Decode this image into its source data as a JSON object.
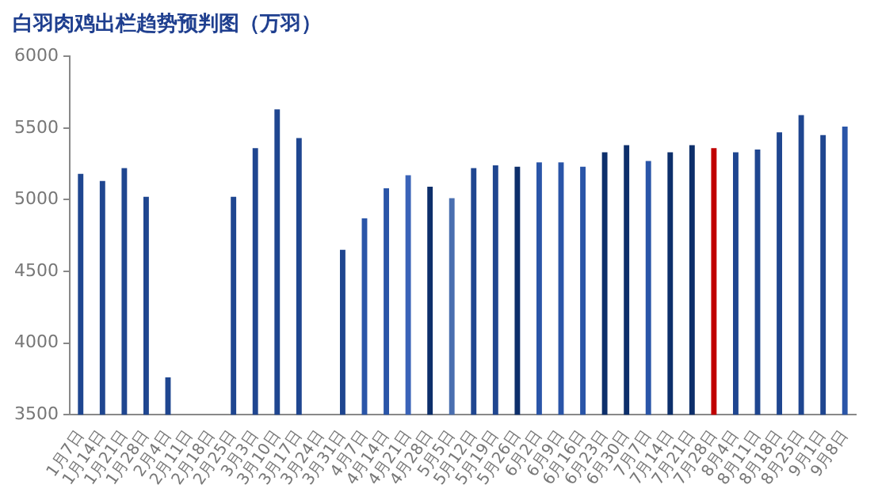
{
  "chart_data": {
    "type": "bar",
    "title": "白羽肉鸡出栏趋势预判图（万羽）",
    "categories": [
      "1月7日",
      "1月14日",
      "1月21日",
      "1月28日",
      "2月4日",
      "2月11日",
      "2月18日",
      "2月25日",
      "3月3日",
      "3月10日",
      "3月17日",
      "3月24日",
      "3月31日",
      "4月7日",
      "4月14日",
      "4月21日",
      "4月28日",
      "5月5日",
      "5月12日",
      "5月19日",
      "5月26日",
      "6月2日",
      "6月9日",
      "6月16日",
      "6月23日",
      "6月30日",
      "7月7日",
      "7月14日",
      "7月21日",
      "7月28日",
      "8月4日",
      "8月11日",
      "8月18日",
      "8月25日",
      "9月1日",
      "9月8日"
    ],
    "values": [
      5180,
      5130,
      5220,
      5020,
      3760,
      null,
      null,
      5020,
      5360,
      5630,
      5430,
      null,
      4650,
      4870,
      5080,
      5170,
      5090,
      5010,
      5220,
      5240,
      5230,
      5260,
      5260,
      5230,
      5330,
      5380,
      5270,
      5330,
      5380,
      5360,
      5330,
      5350,
      5470,
      5590,
      5450,
      5510
    ],
    "colors": [
      "#1f4690",
      "#1f4690",
      "#1f4690",
      "#1f4690",
      "#1f4690",
      "#1f4690",
      "#1f4690",
      "#1f4690",
      "#1f4690",
      "#1f4690",
      "#1f4690",
      "#1f4690",
      "#1f4690",
      "#2a55a8",
      "#2a55a8",
      "#3a63b8",
      "#0d2f6b",
      "#4a6fb0",
      "#1f4690",
      "#1f4690",
      "#0d2f6b",
      "#2a55a8",
      "#2a55a8",
      "#2a55a8",
      "#0d2f6b",
      "#0d2f6b",
      "#2a55a8",
      "#0d2f6b",
      "#0d2f6b",
      "#c00000",
      "#1f4690",
      "#1f4690",
      "#1f4690",
      "#1f4690",
      "#1f4690",
      "#2a55a8"
    ],
    "ylim": [
      3500,
      6000
    ],
    "yticks": [
      3500,
      4000,
      4500,
      5000,
      5500,
      6000
    ],
    "grid": false,
    "legend": false
  }
}
